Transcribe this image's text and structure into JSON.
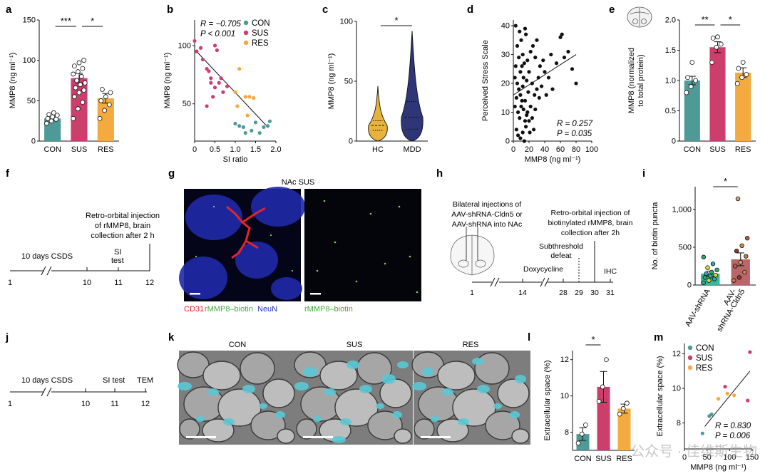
{
  "colors": {
    "con": "#4f9a96",
    "sus": "#cc3f6c",
    "res": "#f3aa3f",
    "hc": "#e7b33a",
    "mdd": "#2f3678",
    "teal": "#59c9d6",
    "neun": "#1b23a8",
    "biotin": "#7bd25b",
    "cd31": "#e4242a",
    "shrna": "#3ab79a",
    "cldn5": "#b9666a"
  },
  "panel_letters": {
    "a": "a",
    "b": "b",
    "c": "c",
    "d": "d",
    "e": "e",
    "f": "f",
    "g": "g",
    "h": "h",
    "i": "i",
    "j": "j",
    "k": "k",
    "l": "l",
    "m": "m"
  },
  "chart_data": [
    {
      "id": "a",
      "type": "bar",
      "categories": [
        "CON",
        "SUS",
        "RES"
      ],
      "values": [
        28,
        78,
        53
      ],
      "errors": [
        3,
        6,
        6
      ],
      "ylabel": "MMP8 (ng ml⁻¹)",
      "yticks": [
        0,
        50,
        100,
        150
      ],
      "ylim": [
        0,
        150
      ],
      "points": [
        [
          22,
          25,
          27,
          28,
          30,
          32,
          33,
          35
        ],
        [
          28,
          40,
          48,
          55,
          60,
          63,
          66,
          70,
          72,
          75,
          80,
          83,
          86,
          90,
          93,
          97,
          100
        ],
        [
          28,
          38,
          45,
          50,
          55,
          60,
          64
        ]
      ],
      "significance": [
        {
          "from": 0,
          "to": 1,
          "label": "***"
        },
        {
          "from": 1,
          "to": 2,
          "label": "*"
        }
      ]
    },
    {
      "id": "b",
      "type": "scatter",
      "xlabel": "SI ratio",
      "ylabel": "MMP8 (ng ml⁻¹)",
      "xticks": [
        "0",
        "0.5",
        "1.0",
        "1.5",
        "2.0"
      ],
      "xlim": [
        0,
        2
      ],
      "yticks": [
        50,
        100
      ],
      "ylim": [
        18,
        122
      ],
      "stats_r": "R = −0.705",
      "stats_p": "P < 0.001",
      "legend": [
        "CON",
        "SUS",
        "RES"
      ],
      "series": [
        {
          "name": "CON",
          "points": [
            [
              1.0,
              33
            ],
            [
              1.1,
              31
            ],
            [
              1.2,
              30
            ],
            [
              1.25,
              25
            ],
            [
              1.4,
              27
            ],
            [
              1.5,
              34
            ],
            [
              1.6,
              25
            ],
            [
              1.7,
              30
            ],
            [
              1.8,
              31
            ],
            [
              1.85,
              35
            ]
          ]
        },
        {
          "name": "SUS",
          "points": [
            [
              0.0,
              104
            ],
            [
              0.05,
              95
            ],
            [
              0.15,
              98
            ],
            [
              0.2,
              88
            ],
            [
              0.3,
              80
            ],
            [
              0.35,
              78
            ],
            [
              0.4,
              68
            ],
            [
              0.45,
              56
            ],
            [
              0.5,
              64
            ],
            [
              0.6,
              68
            ],
            [
              0.65,
              72
            ],
            [
              0.7,
              60
            ],
            [
              0.8,
              65
            ],
            [
              0.3,
              48
            ],
            [
              0.5,
              100
            ],
            [
              0.55,
              96
            ],
            [
              0.4,
              72
            ]
          ]
        },
        {
          "name": "RES",
          "points": [
            [
              1.1,
              80
            ],
            [
              1.0,
              60
            ],
            [
              1.05,
              48
            ],
            [
              1.25,
              56
            ],
            [
              1.35,
              56
            ],
            [
              1.45,
              55
            ],
            [
              1.3,
              40
            ]
          ]
        }
      ],
      "fit": [
        [
          0.02,
          96
        ],
        [
          1.8,
          30
        ]
      ]
    },
    {
      "id": "c",
      "type": "violin",
      "categories": [
        "HC",
        "MDD"
      ],
      "ylabel": "MMP8 (ng ml⁻¹)",
      "yticks": [
        0,
        50,
        100
      ],
      "ylim": [
        0,
        100
      ],
      "medians": [
        13,
        20
      ],
      "q1": [
        9,
        10
      ],
      "q3": [
        17,
        33
      ],
      "max": [
        46,
        92
      ],
      "significance": [
        {
          "from": 0,
          "to": 1,
          "label": "*"
        }
      ]
    },
    {
      "id": "d",
      "type": "scatter",
      "xlabel": "MMP8 (ng ml⁻¹)",
      "ylabel": "Perceived Stress Scale",
      "xticks": [
        "0",
        "20",
        "40",
        "60",
        "80",
        "100"
      ],
      "xlim": [
        0,
        100
      ],
      "yticks": [
        0,
        10,
        20,
        30,
        40
      ],
      "ylim": [
        0,
        42
      ],
      "stats_r": "R = 0.257",
      "stats_p": "P = 0.035",
      "points": [
        [
          3,
          40
        ],
        [
          5,
          33
        ],
        [
          8,
          38
        ],
        [
          10,
          35
        ],
        [
          12,
          30
        ],
        [
          14,
          27
        ],
        [
          15,
          39
        ],
        [
          16,
          37
        ],
        [
          18,
          28
        ],
        [
          20,
          24
        ],
        [
          22,
          31
        ],
        [
          25,
          33
        ],
        [
          28,
          29
        ],
        [
          30,
          35
        ],
        [
          32,
          22
        ],
        [
          34,
          26
        ],
        [
          38,
          28
        ],
        [
          40,
          24
        ],
        [
          5,
          20
        ],
        [
          7,
          18
        ],
        [
          9,
          16
        ],
        [
          11,
          14
        ],
        [
          12,
          19
        ],
        [
          13,
          22
        ],
        [
          6,
          10
        ],
        [
          8,
          8
        ],
        [
          10,
          12
        ],
        [
          15,
          14
        ],
        [
          18,
          10
        ],
        [
          20,
          7
        ],
        [
          22,
          12
        ],
        [
          4,
          4
        ],
        [
          6,
          2
        ],
        [
          9,
          1
        ],
        [
          12,
          3
        ],
        [
          14,
          0
        ],
        [
          16,
          5
        ],
        [
          3,
          26
        ],
        [
          2,
          22
        ],
        [
          17,
          21
        ],
        [
          19,
          17
        ],
        [
          24,
          20
        ],
        [
          27,
          16
        ],
        [
          30,
          18
        ],
        [
          33,
          15
        ],
        [
          36,
          19
        ],
        [
          42,
          16
        ],
        [
          45,
          22
        ],
        [
          50,
          18
        ],
        [
          60,
          36
        ],
        [
          65,
          29
        ],
        [
          70,
          31
        ],
        [
          75,
          25
        ],
        [
          80,
          20
        ],
        [
          48,
          30
        ],
        [
          55,
          27
        ],
        [
          2,
          12
        ],
        [
          4,
          15
        ],
        [
          7,
          29
        ],
        [
          9,
          24
        ],
        [
          11,
          26
        ],
        [
          13,
          11
        ],
        [
          15,
          7
        ],
        [
          17,
          9
        ],
        [
          21,
          3
        ],
        [
          24,
          8
        ],
        [
          26,
          4
        ],
        [
          28,
          11
        ],
        [
          62,
          37
        ]
      ],
      "fit": [
        [
          0,
          16
        ],
        [
          80,
          30
        ]
      ]
    },
    {
      "id": "e",
      "type": "bar",
      "categories": [
        "CON",
        "SUS",
        "RES"
      ],
      "values": [
        1.0,
        1.55,
        1.13
      ],
      "errors": [
        0.07,
        0.09,
        0.08
      ],
      "ylabel": "MMP8 (normalized to total protein)",
      "yticks": [
        "0",
        "0.5",
        "1.0",
        "1.5",
        "2.0"
      ],
      "ylim": [
        0,
        2
      ],
      "points": [
        [
          0.8,
          0.9,
          1.0,
          1.05,
          1.3
        ],
        [
          1.3,
          1.55,
          1.6,
          1.7,
          1.72
        ],
        [
          0.95,
          1.05,
          1.1,
          1.2,
          1.3
        ]
      ],
      "significance": [
        {
          "from": 0,
          "to": 1,
          "label": "**"
        },
        {
          "from": 1,
          "to": 2,
          "label": "*"
        }
      ]
    },
    {
      "id": "i",
      "type": "bar",
      "categories": [
        "AAV-shRNA",
        "AAV-shRNA-Cldn5"
      ],
      "values": [
        150,
        340
      ],
      "errors": [
        35,
        85
      ],
      "ylabel": "No. of biotin puncta",
      "yticks": [
        "0",
        "500",
        "1,000"
      ],
      "ylim": [
        0,
        1300
      ],
      "points": [
        [
          30,
          60,
          80,
          100,
          120,
          130,
          150,
          170,
          200,
          230,
          280,
          370
        ],
        [
          60,
          100,
          170,
          250,
          300,
          380,
          450,
          520,
          620,
          1140
        ]
      ],
      "significance": [
        {
          "from": 0,
          "to": 1,
          "label": "*"
        }
      ]
    },
    {
      "id": "l",
      "type": "bar",
      "categories": [
        "CON",
        "SUS",
        "RES"
      ],
      "values": [
        7.9,
        10.5,
        9.3
      ],
      "errors": [
        0.35,
        0.85,
        0.25
      ],
      "ylabel": "Extracellular space (%)",
      "yticks": [
        8,
        10,
        12
      ],
      "ylim": [
        7,
        12.5
      ],
      "points": [
        [
          7.4,
          7.9,
          8.4
        ],
        [
          9.7,
          10.5,
          12.0
        ],
        [
          9.0,
          9.3,
          9.6
        ]
      ],
      "significance": [
        {
          "from": 0,
          "to": 1,
          "label": "*"
        }
      ]
    },
    {
      "id": "m",
      "type": "scatter",
      "xlabel": "MMP8 (ng ml⁻¹)",
      "ylabel": "Extracellular space (%)",
      "xticks": [
        "0",
        "50",
        "100",
        "150"
      ],
      "xlim": [
        0,
        150
      ],
      "yticks": [
        8,
        10,
        12
      ],
      "ylim": [
        6.5,
        12.6
      ],
      "stats_r": "R = 0.830",
      "stats_p": "P = 0.006",
      "legend": [
        "CON",
        "SUS",
        "RES"
      ],
      "series": [
        {
          "name": "CON",
          "points": [
            [
              40,
              7.4
            ],
            [
              55,
              8.4
            ],
            [
              60,
              8.5
            ]
          ]
        },
        {
          "name": "SUS",
          "points": [
            [
              90,
              10.1
            ],
            [
              140,
              9.3
            ],
            [
              145,
              12.1
            ]
          ]
        },
        {
          "name": "RES",
          "points": [
            [
              75,
              9.4
            ],
            [
              95,
              9.7
            ],
            [
              110,
              9.6
            ]
          ]
        }
      ],
      "fit": [
        [
          45,
          7.8
        ],
        [
          145,
          11.0
        ]
      ]
    }
  ],
  "panel_f": {
    "label": "Retro-orbital injection of rMMP8, brain collection after 2 h",
    "line1": "Retro-orbital injection",
    "line2": "of rMMP8, brain",
    "line3": "collection after 2 h",
    "csds": "10 days CSDS",
    "si_test_a": "SI",
    "si_test_b": "test",
    "days": [
      "1",
      "10",
      "11",
      "12"
    ]
  },
  "panel_g": {
    "title": "NAc SUS",
    "cd31": "CD31",
    "biotin": "rMMP8–biotin",
    "neun": "NeuN",
    "right_label": "rMMP8–biotin"
  },
  "panel_h": {
    "inj1": "Bilateral injections of",
    "inj2": "AAV-shRNA-Cldn5 or",
    "inj3": "AAV-shRNA into NAc",
    "ret1": "Retro-orbital injection of",
    "ret2": "biotinylated rMMP8, brain",
    "ret3": "collection after 2h",
    "sub1": "Subthreshold",
    "sub2": "defeat",
    "dox": "Doxycycline",
    "ihc": "IHC",
    "days": [
      "1",
      "14",
      "28",
      "29",
      "30",
      "31"
    ]
  },
  "panel_j": {
    "csds": "10 days CSDS",
    "si": "SI test",
    "tem": "TEM",
    "days": [
      "1",
      "10",
      "11",
      "12"
    ]
  },
  "panel_k": {
    "titles": [
      "CON",
      "SUS",
      "RES"
    ]
  },
  "watermark": "公众号 · 佳维斯生物"
}
